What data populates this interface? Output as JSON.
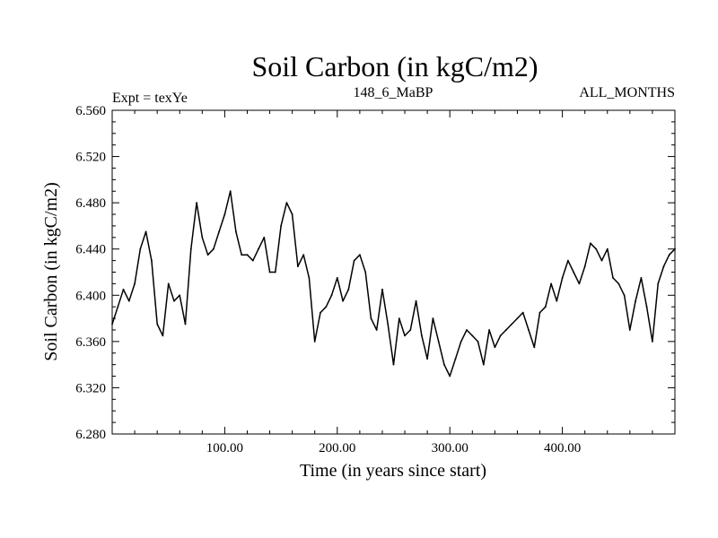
{
  "chart_data": {
    "type": "line",
    "title": "Soil Carbon (in kgC/m2)",
    "subtitle_left": "Expt = texYe",
    "subtitle_center": "148_6_MaBP",
    "subtitle_right": "ALL_MONTHS",
    "xlabel": "Time (in years since start)",
    "ylabel": "Soil Carbon (in kgC/m2)",
    "xlim": [
      0,
      500
    ],
    "ylim": [
      6.28,
      6.56
    ],
    "x_ticks": [
      100,
      200,
      300,
      400
    ],
    "x_tick_labels": [
      "100.00",
      "200.00",
      "300.00",
      "400.00"
    ],
    "y_ticks": [
      6.28,
      6.32,
      6.36,
      6.4,
      6.44,
      6.48,
      6.52,
      6.56
    ],
    "y_tick_labels": [
      "6.280",
      "6.320",
      "6.360",
      "6.400",
      "6.440",
      "6.480",
      "6.520",
      "6.560"
    ],
    "grid": false,
    "line_color": "#000000",
    "series": [
      {
        "x": [
          0,
          5,
          10,
          15,
          20,
          25,
          30,
          35,
          40,
          45,
          50,
          55,
          60,
          65,
          70,
          75,
          80,
          85,
          90,
          95,
          100,
          105,
          110,
          115,
          120,
          125,
          130,
          135,
          140,
          145,
          150,
          155,
          160,
          165,
          170,
          175,
          180,
          185,
          190,
          195,
          200,
          205,
          210,
          215,
          220,
          225,
          230,
          235,
          240,
          245,
          250,
          255,
          260,
          265,
          270,
          275,
          280,
          285,
          290,
          295,
          300,
          305,
          310,
          315,
          320,
          325,
          330,
          335,
          340,
          345,
          350,
          355,
          360,
          365,
          370,
          375,
          380,
          385,
          390,
          395,
          400,
          405,
          410,
          415,
          420,
          425,
          430,
          435,
          440,
          445,
          450,
          455,
          460,
          465,
          470,
          475,
          480,
          485,
          490,
          495,
          500
        ],
        "values": [
          6.375,
          6.39,
          6.405,
          6.395,
          6.41,
          6.44,
          6.455,
          6.43,
          6.375,
          6.365,
          6.41,
          6.395,
          6.4,
          6.375,
          6.44,
          6.48,
          6.45,
          6.435,
          6.44,
          6.455,
          6.47,
          6.49,
          6.455,
          6.435,
          6.435,
          6.43,
          6.44,
          6.45,
          6.42,
          6.42,
          6.46,
          6.48,
          6.47,
          6.425,
          6.435,
          6.415,
          6.36,
          6.385,
          6.39,
          6.4,
          6.415,
          6.395,
          6.405,
          6.43,
          6.435,
          6.42,
          6.38,
          6.37,
          6.405,
          6.375,
          6.34,
          6.38,
          6.365,
          6.37,
          6.395,
          6.365,
          6.345,
          6.38,
          6.36,
          6.34,
          6.33,
          6.345,
          6.36,
          6.37,
          6.365,
          6.36,
          6.34,
          6.37,
          6.355,
          6.365,
          6.37,
          6.375,
          6.38,
          6.385,
          6.37,
          6.355,
          6.385,
          6.39,
          6.41,
          6.395,
          6.415,
          6.43,
          6.42,
          6.41,
          6.425,
          6.445,
          6.44,
          6.43,
          6.44,
          6.415,
          6.41,
          6.4,
          6.37,
          6.395,
          6.415,
          6.39,
          6.36,
          6.41,
          6.425,
          6.435,
          6.44
        ]
      }
    ]
  }
}
